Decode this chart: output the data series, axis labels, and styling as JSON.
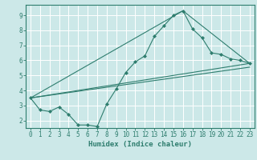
{
  "xlabel": "Humidex (Indice chaleur)",
  "bg_color": "#cce8e8",
  "grid_color": "#ffffff",
  "line_color": "#2e7d6e",
  "marker": "D",
  "marker_size": 2.0,
  "xlim": [
    -0.5,
    23.5
  ],
  "ylim": [
    1.5,
    9.7
  ],
  "xticks": [
    0,
    1,
    2,
    3,
    4,
    5,
    6,
    7,
    8,
    9,
    10,
    11,
    12,
    13,
    14,
    15,
    16,
    17,
    18,
    19,
    20,
    21,
    22,
    23
  ],
  "yticks": [
    2,
    3,
    4,
    5,
    6,
    7,
    8,
    9
  ],
  "main_series": {
    "x": [
      0,
      1,
      2,
      3,
      4,
      5,
      6,
      7,
      8,
      9,
      10,
      11,
      12,
      13,
      14,
      15,
      16,
      17,
      18,
      19,
      20,
      21,
      22,
      23
    ],
    "y": [
      3.5,
      2.7,
      2.6,
      2.9,
      2.4,
      1.7,
      1.7,
      1.6,
      3.1,
      4.1,
      5.2,
      5.9,
      6.3,
      7.6,
      8.3,
      9.0,
      9.3,
      8.1,
      7.5,
      6.5,
      6.4,
      6.1,
      6.0,
      5.8
    ]
  },
  "straight_lines": [
    {
      "x": [
        0,
        23
      ],
      "y": [
        3.5,
        5.8
      ]
    },
    {
      "x": [
        0,
        16,
        23
      ],
      "y": [
        3.5,
        9.3,
        5.8
      ]
    },
    {
      "x": [
        0,
        23
      ],
      "y": [
        3.5,
        5.55
      ]
    }
  ]
}
